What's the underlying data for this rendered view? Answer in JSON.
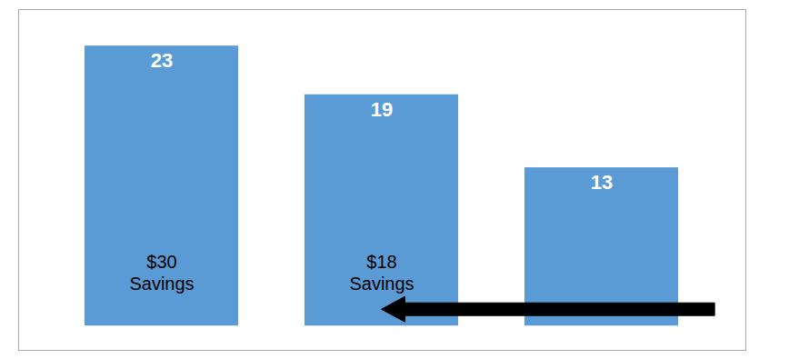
{
  "chart_data": {
    "type": "bar",
    "categories": [
      null,
      null,
      null
    ],
    "values": [
      23,
      19,
      13
    ],
    "color": "#5B9BD5",
    "data_labels": true,
    "annotations": [
      "$30\nSavings",
      "$18\nSavings",
      null
    ],
    "ylim": [
      -2,
      26
    ],
    "tick_labels": false
  }
}
